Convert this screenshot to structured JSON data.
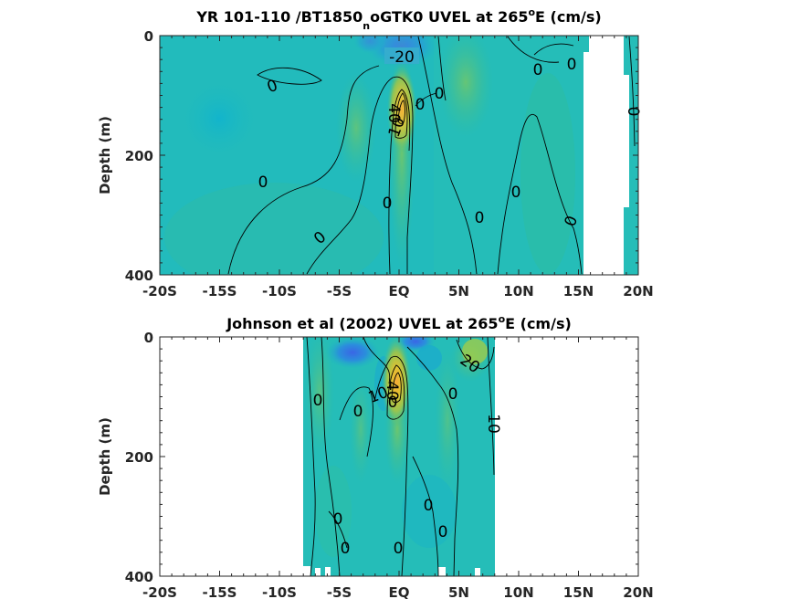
{
  "chart_data": [
    {
      "type": "contour",
      "title": "YR 101-110 /BT1850_noGTK0 UVEL at 265°E (cm/s)",
      "title_parts": {
        "pre": "YR 101-110 /BT1850",
        "sub": "n",
        "mid": "oGTK0 UVEL at 265",
        "sup": "o",
        "post": "E (cm/s)"
      },
      "xlabel": "",
      "ylabel": "Depth (m)",
      "xlim": [
        -20,
        20
      ],
      "ylim": [
        400,
        0
      ],
      "x_ticks": [
        -20,
        -15,
        -10,
        -5,
        0,
        5,
        10,
        15,
        20
      ],
      "x_tick_labels": [
        "-20S",
        "-15S",
        "-10S",
        "-5S",
        "EQ",
        "5N",
        "10N",
        "15N",
        "20N"
      ],
      "y_ticks": [
        0,
        200,
        400
      ],
      "y_tick_labels": [
        "0",
        "200",
        "400"
      ],
      "data_extent_lat": [
        -20,
        20
      ],
      "missing_region_lat": [
        15.5,
        19
      ],
      "features": [
        {
          "kind": "eastward core (EUC)",
          "lat": 0.2,
          "depth": 100,
          "peak": 45
        },
        {
          "kind": "westward surface flow",
          "lat": -0.5,
          "depth": 10,
          "peak": -25
        }
      ],
      "contour_labels": [
        "-20",
        "0",
        "40",
        "0",
        "10",
        "0",
        "0",
        "0",
        "0",
        "0",
        "0",
        "0",
        "0",
        "0",
        "0",
        "50"
      ]
    },
    {
      "type": "contour",
      "title": "Johnson et al (2002) UVEL at 265°E (cm/s)",
      "title_parts": {
        "pre": "Johnson et al (2002) UVEL at 265",
        "sup": "o",
        "post": "E (cm/s)"
      },
      "xlabel": "",
      "ylabel": "Depth (m)",
      "xlim": [
        -20,
        20
      ],
      "ylim": [
        400,
        0
      ],
      "x_ticks": [
        -20,
        -15,
        -10,
        -5,
        0,
        5,
        10,
        15,
        20
      ],
      "x_tick_labels": [
        "-20S",
        "-15S",
        "-10S",
        "-5S",
        "EQ",
        "5N",
        "10N",
        "15N",
        "20N"
      ],
      "y_ticks": [
        0,
        200,
        400
      ],
      "y_tick_labels": [
        "0",
        "200",
        "400"
      ],
      "data_extent_lat": [
        -8,
        8
      ],
      "features": [
        {
          "kind": "eastward core (EUC)",
          "lat": 0,
          "depth": 75,
          "peak": 50
        },
        {
          "kind": "westward surface flow",
          "lat": -3,
          "depth": 10,
          "peak": -25
        },
        {
          "kind": "westward surface flow",
          "lat": 1.5,
          "depth": 5,
          "peak": -25
        },
        {
          "kind": "eastward surface flow",
          "lat": 6,
          "depth": 20,
          "peak": 20
        }
      ],
      "contour_labels": [
        "20",
        "0",
        "0",
        "10",
        "40",
        "0",
        "0",
        "10",
        "0",
        "0",
        "0",
        "0",
        "0"
      ]
    }
  ]
}
